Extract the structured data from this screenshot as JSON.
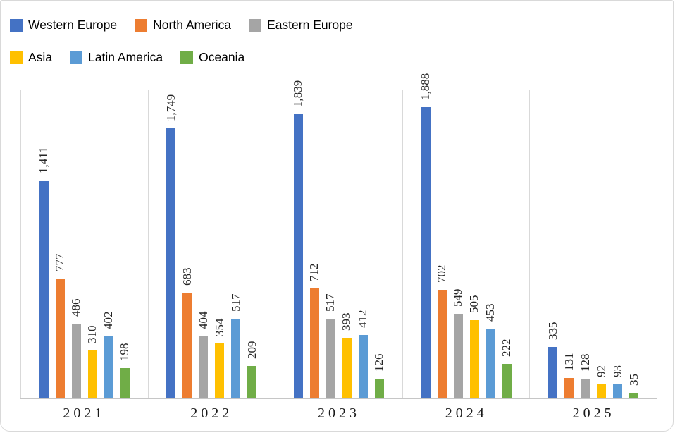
{
  "chart_data": {
    "type": "bar",
    "title": "",
    "xlabel": "",
    "ylabel": "",
    "ylim": [
      0,
      2000
    ],
    "grid": "vertical-category-separators",
    "legend_position": "top-left",
    "value_labels": "rotated-90-above-bars, thousands comma separator",
    "categories": [
      "2021",
      "2022",
      "2023",
      "2024",
      "2025"
    ],
    "series": [
      {
        "name": "Western Europe",
        "color": "#4472C4",
        "values": [
          1411,
          1749,
          1839,
          1888,
          335
        ]
      },
      {
        "name": "North America",
        "color": "#ED7D31",
        "values": [
          777,
          683,
          712,
          702,
          131
        ]
      },
      {
        "name": "Eastern Europe",
        "color": "#A5A5A5",
        "values": [
          486,
          404,
          517,
          549,
          128
        ]
      },
      {
        "name": "Asia",
        "color": "#FFC000",
        "values": [
          310,
          354,
          393,
          505,
          92
        ]
      },
      {
        "name": "Latin America",
        "color": "#5B9BD5",
        "values": [
          402,
          517,
          412,
          453,
          93
        ]
      },
      {
        "name": "Oceania",
        "color": "#70AD47",
        "values": [
          198,
          209,
          126,
          222,
          35
        ]
      }
    ]
  },
  "colors": {
    "gridline": "#d9d9d9",
    "axis_line": "#c6c6c6",
    "label_text": "#262626",
    "legend_text": "#000000",
    "background": "#ffffff",
    "border": "#d9d9d9"
  }
}
